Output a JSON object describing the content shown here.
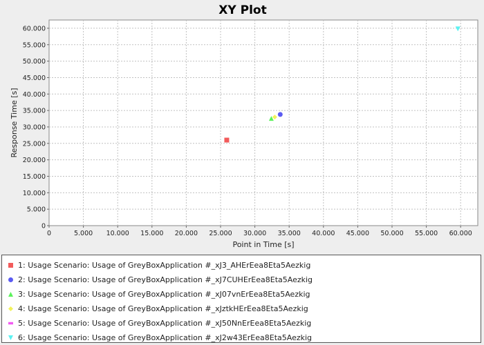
{
  "chart_data": {
    "type": "scatter",
    "title": "XY Plot",
    "xlabel": "Point in Time [s]",
    "ylabel": "Response Time [s]",
    "xlim": [
      0,
      62500
    ],
    "ylim": [
      0,
      62500
    ],
    "x_ticks": [
      "0",
      "5.000",
      "10.000",
      "15.000",
      "20.000",
      "25.000",
      "30.000",
      "35.000",
      "40.000",
      "45.000",
      "50.000",
      "55.000",
      "60.000"
    ],
    "y_ticks": [
      "0",
      "5.000",
      "10.000",
      "15.000",
      "20.000",
      "25.000",
      "30.000",
      "35.000",
      "40.000",
      "45.000",
      "50.000",
      "55.000",
      "60.000"
    ],
    "grid": true,
    "legend_position": "bottom",
    "series": [
      {
        "name": "1: Usage Scenario: Usage of GreyBoxApplication #_xJ3_AHErEea8Eta5Aezkig",
        "color": "#f25b5b",
        "marker": "square",
        "points": [
          [
            25900,
            26000
          ]
        ]
      },
      {
        "name": "2: Usage Scenario: Usage of GreyBoxApplication #_xJ7CUHErEea8Eta5Aezkig",
        "color": "#5b5bf2",
        "marker": "circle",
        "points": [
          [
            33700,
            33800
          ]
        ]
      },
      {
        "name": "3: Usage Scenario: Usage of GreyBoxApplication #_xJ07vnErEea8Eta5Aezkig",
        "color": "#5bf25b",
        "marker": "triangle-up",
        "points": [
          [
            32400,
            32600
          ]
        ]
      },
      {
        "name": "4: Usage Scenario: Usage of GreyBoxApplication #_xJztkHErEea8Eta5Aezkig",
        "color": "#f2f25b",
        "marker": "diamond",
        "points": [
          [
            32900,
            33000
          ]
        ]
      },
      {
        "name": "5: Usage Scenario: Usage of GreyBoxApplication #_xJ50NnErEea8Eta5Aezkig",
        "color": "#f25bf2",
        "marker": "rect-h",
        "points": []
      },
      {
        "name": "6: Usage Scenario: Usage of GreyBoxApplication #_xJ2w43ErEea8Eta5Aezkig",
        "color": "#5bf2f2",
        "marker": "triangle-down",
        "points": [
          [
            59600,
            59800
          ]
        ]
      }
    ]
  }
}
